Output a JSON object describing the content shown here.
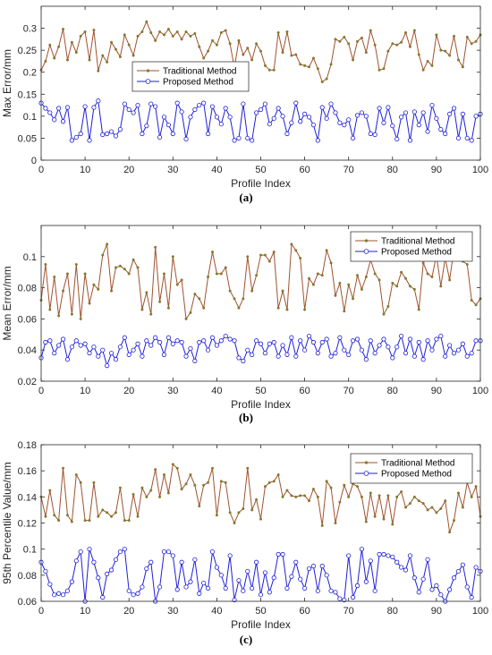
{
  "chart_data": [
    {
      "type": "line",
      "caption": "(a)",
      "xlabel": "Profile Index",
      "ylabel": "Max Error/mm",
      "xlim": [
        0,
        100
      ],
      "ylim": [
        0,
        0.35
      ],
      "xticks": [
        0,
        10,
        20,
        30,
        40,
        50,
        60,
        70,
        80,
        90,
        100
      ],
      "yticks": [
        0,
        0.05,
        0.1,
        0.15,
        0.2,
        0.25,
        0.3
      ],
      "ytick_labels": [
        "0",
        "0.05",
        "0.1",
        "0.15",
        "0.2",
        "0.25",
        "0.3"
      ],
      "legend_position": "center-left",
      "series": [
        {
          "name": "Traditional Method",
          "color": "#a0522d",
          "values": [
            0.205,
            0.225,
            0.262,
            0.232,
            0.258,
            0.298,
            0.228,
            0.268,
            0.245,
            0.282,
            0.292,
            0.228,
            0.296,
            0.203,
            0.238,
            0.223,
            0.268,
            0.252,
            0.235,
            0.285,
            0.262,
            0.238,
            0.282,
            0.292,
            0.315,
            0.29,
            0.272,
            0.292,
            0.285,
            0.298,
            0.282,
            0.292,
            0.275,
            0.292,
            0.282,
            0.288,
            0.258,
            0.232,
            0.248,
            0.272,
            0.262,
            0.29,
            0.295,
            0.265,
            0.21,
            0.272,
            0.24,
            0.255,
            0.228,
            0.265,
            0.248,
            0.215,
            0.205,
            0.205,
            0.29,
            0.245,
            0.292,
            0.238,
            0.24,
            0.218,
            0.215,
            0.212,
            0.232,
            0.208,
            0.178,
            0.185,
            0.218,
            0.275,
            0.27,
            0.28,
            0.265,
            0.228,
            0.27,
            0.278,
            0.245,
            0.295,
            0.262,
            0.205,
            0.208,
            0.248,
            0.265,
            0.262,
            0.268,
            0.29,
            0.258,
            0.295,
            0.24,
            0.205,
            0.225,
            0.215,
            0.285,
            0.25,
            0.248,
            0.238,
            0.282,
            0.228,
            0.212,
            0.28,
            0.265,
            0.27,
            0.285
          ]
        },
        {
          "name": "Proposed Method",
          "color": "#1f1fd9",
          "values": [
            0.13,
            0.118,
            0.108,
            0.092,
            0.118,
            0.088,
            0.12,
            0.045,
            0.052,
            0.06,
            0.122,
            0.045,
            0.12,
            0.135,
            0.058,
            0.06,
            0.065,
            0.055,
            0.07,
            0.128,
            0.115,
            0.108,
            0.125,
            0.06,
            0.078,
            0.128,
            0.122,
            0.052,
            0.098,
            0.08,
            0.06,
            0.13,
            0.11,
            0.048,
            0.098,
            0.115,
            0.125,
            0.13,
            0.06,
            0.122,
            0.098,
            0.082,
            0.118,
            0.098,
            0.045,
            0.05,
            0.128,
            0.05,
            0.045,
            0.108,
            0.115,
            0.128,
            0.082,
            0.095,
            0.118,
            0.1,
            0.06,
            0.085,
            0.13,
            0.088,
            0.105,
            0.098,
            0.08,
            0.045,
            0.12,
            0.095,
            0.128,
            0.108,
            0.085,
            0.08,
            0.092,
            0.05,
            0.102,
            0.108,
            0.1,
            0.06,
            0.058,
            0.118,
            0.085,
            0.12,
            0.078,
            0.048,
            0.098,
            0.108,
            0.045,
            0.11,
            0.08,
            0.108,
            0.065,
            0.125,
            0.095,
            0.07,
            0.06,
            0.105,
            0.118,
            0.05,
            0.105,
            0.05,
            0.045,
            0.1,
            0.105
          ]
        }
      ]
    },
    {
      "type": "line",
      "caption": "(b)",
      "xlabel": "Profile Index",
      "ylabel": "Mean Error/mm",
      "xlim": [
        0,
        100
      ],
      "ylim": [
        0.02,
        0.12
      ],
      "xticks": [
        0,
        10,
        20,
        30,
        40,
        50,
        60,
        70,
        80,
        90,
        100
      ],
      "yticks": [
        0.02,
        0.04,
        0.06,
        0.08,
        0.1
      ],
      "ytick_labels": [
        "0.02",
        "0.04",
        "0.06",
        "0.08",
        "0.1"
      ],
      "legend_position": "top-right",
      "series": [
        {
          "name": "Traditional Method",
          "color": "#a0522d",
          "values": [
            0.072,
            0.095,
            0.066,
            0.087,
            0.062,
            0.078,
            0.089,
            0.063,
            0.095,
            0.06,
            0.089,
            0.07,
            0.082,
            0.079,
            0.101,
            0.108,
            0.078,
            0.093,
            0.094,
            0.092,
            0.089,
            0.098,
            0.093,
            0.066,
            0.077,
            0.063,
            0.106,
            0.071,
            0.089,
            0.067,
            0.1,
            0.082,
            0.085,
            0.06,
            0.064,
            0.076,
            0.073,
            0.067,
            0.087,
            0.103,
            0.089,
            0.089,
            0.093,
            0.078,
            0.073,
            0.067,
            0.073,
            0.1,
            0.078,
            0.088,
            0.101,
            0.101,
            0.097,
            0.103,
            0.067,
            0.078,
            0.066,
            0.108,
            0.104,
            0.099,
            0.066,
            0.086,
            0.082,
            0.089,
            0.088,
            0.104,
            0.096,
            0.075,
            0.083,
            0.065,
            0.082,
            0.073,
            0.088,
            0.079,
            0.087,
            0.098,
            0.089,
            0.085,
            0.063,
            0.068,
            0.083,
            0.081,
            0.09,
            0.086,
            0.081,
            0.079,
            0.066,
            0.096,
            0.089,
            0.087,
            0.101,
            0.081,
            0.099,
            0.085,
            0.105,
            0.1,
            0.097,
            0.095,
            0.072,
            0.069,
            0.073
          ]
        },
        {
          "name": "Proposed Method",
          "color": "#1f1fd9",
          "values": [
            0.035,
            0.045,
            0.046,
            0.038,
            0.043,
            0.047,
            0.034,
            0.042,
            0.046,
            0.043,
            0.044,
            0.038,
            0.042,
            0.036,
            0.04,
            0.03,
            0.038,
            0.034,
            0.042,
            0.048,
            0.037,
            0.04,
            0.044,
            0.036,
            0.046,
            0.043,
            0.048,
            0.045,
            0.037,
            0.048,
            0.044,
            0.046,
            0.045,
            0.036,
            0.041,
            0.033,
            0.045,
            0.046,
            0.04,
            0.048,
            0.043,
            0.046,
            0.049,
            0.047,
            0.046,
            0.035,
            0.033,
            0.04,
            0.037,
            0.046,
            0.044,
            0.038,
            0.044,
            0.045,
            0.036,
            0.043,
            0.037,
            0.048,
            0.036,
            0.046,
            0.04,
            0.049,
            0.045,
            0.038,
            0.045,
            0.047,
            0.036,
            0.038,
            0.048,
            0.04,
            0.037,
            0.046,
            0.047,
            0.04,
            0.034,
            0.046,
            0.038,
            0.043,
            0.047,
            0.042,
            0.035,
            0.042,
            0.049,
            0.038,
            0.047,
            0.036,
            0.045,
            0.034,
            0.046,
            0.04,
            0.047,
            0.049,
            0.036,
            0.043,
            0.038,
            0.04,
            0.044,
            0.036,
            0.038,
            0.046,
            0.046
          ]
        }
      ]
    },
    {
      "type": "line",
      "caption": "(c)",
      "xlabel": "Profile Index",
      "ylabel": "95th Percentile Value/mm",
      "xlim": [
        0,
        100
      ],
      "ylim": [
        0.06,
        0.18
      ],
      "xticks": [
        0,
        10,
        20,
        30,
        40,
        50,
        60,
        70,
        80,
        90,
        100
      ],
      "yticks": [
        0.06,
        0.08,
        0.1,
        0.12,
        0.14,
        0.16,
        0.18
      ],
      "ytick_labels": [
        "0.06",
        "0.08",
        "0.1",
        "0.12",
        "0.14",
        "0.16",
        "0.18"
      ],
      "legend_position": "top-right",
      "series": [
        {
          "name": "Traditional Method",
          "color": "#a0522d",
          "values": [
            0.14,
            0.125,
            0.145,
            0.126,
            0.122,
            0.162,
            0.126,
            0.121,
            0.157,
            0.151,
            0.122,
            0.122,
            0.151,
            0.125,
            0.13,
            0.128,
            0.125,
            0.128,
            0.147,
            0.122,
            0.122,
            0.142,
            0.125,
            0.147,
            0.14,
            0.145,
            0.161,
            0.14,
            0.157,
            0.143,
            0.165,
            0.162,
            0.146,
            0.15,
            0.157,
            0.149,
            0.133,
            0.149,
            0.151,
            0.162,
            0.126,
            0.152,
            0.151,
            0.128,
            0.12,
            0.128,
            0.131,
            0.162,
            0.13,
            0.138,
            0.123,
            0.148,
            0.151,
            0.152,
            0.157,
            0.14,
            0.145,
            0.141,
            0.14,
            0.141,
            0.141,
            0.137,
            0.146,
            0.14,
            0.118,
            0.152,
            0.147,
            0.12,
            0.136,
            0.149,
            0.14,
            0.15,
            0.148,
            0.14,
            0.121,
            0.143,
            0.125,
            0.141,
            0.123,
            0.141,
            0.119,
            0.14,
            0.144,
            0.132,
            0.135,
            0.14,
            0.137,
            0.135,
            0.13,
            0.132,
            0.128,
            0.131,
            0.137,
            0.113,
            0.122,
            0.143,
            0.132,
            0.151,
            0.14,
            0.148,
            0.125
          ]
        },
        {
          "name": "Proposed Method",
          "color": "#1f1fd9",
          "values": [
            0.09,
            0.083,
            0.073,
            0.065,
            0.066,
            0.065,
            0.068,
            0.075,
            0.091,
            0.098,
            0.06,
            0.1,
            0.09,
            0.078,
            0.063,
            0.081,
            0.084,
            0.092,
            0.098,
            0.1,
            0.068,
            0.065,
            0.066,
            0.071,
            0.085,
            0.09,
            0.06,
            0.071,
            0.098,
            0.098,
            0.095,
            0.069,
            0.09,
            0.071,
            0.075,
            0.092,
            0.066,
            0.074,
            0.07,
            0.098,
            0.086,
            0.08,
            0.07,
            0.095,
            0.061,
            0.076,
            0.068,
            0.083,
            0.07,
            0.09,
            0.065,
            0.082,
            0.067,
            0.078,
            0.096,
            0.096,
            0.07,
            0.079,
            0.09,
            0.077,
            0.07,
            0.085,
            0.087,
            0.068,
            0.087,
            0.08,
            0.068,
            0.067,
            0.062,
            0.061,
            0.095,
            0.063,
            0.072,
            0.1,
            0.075,
            0.091,
            0.068,
            0.096,
            0.096,
            0.095,
            0.094,
            0.09,
            0.086,
            0.084,
            0.095,
            0.078,
            0.067,
            0.077,
            0.092,
            0.069,
            0.072,
            0.065,
            0.06,
            0.069,
            0.078,
            0.083,
            0.088,
            0.071,
            0.063,
            0.086,
            0.083
          ]
        }
      ]
    }
  ]
}
